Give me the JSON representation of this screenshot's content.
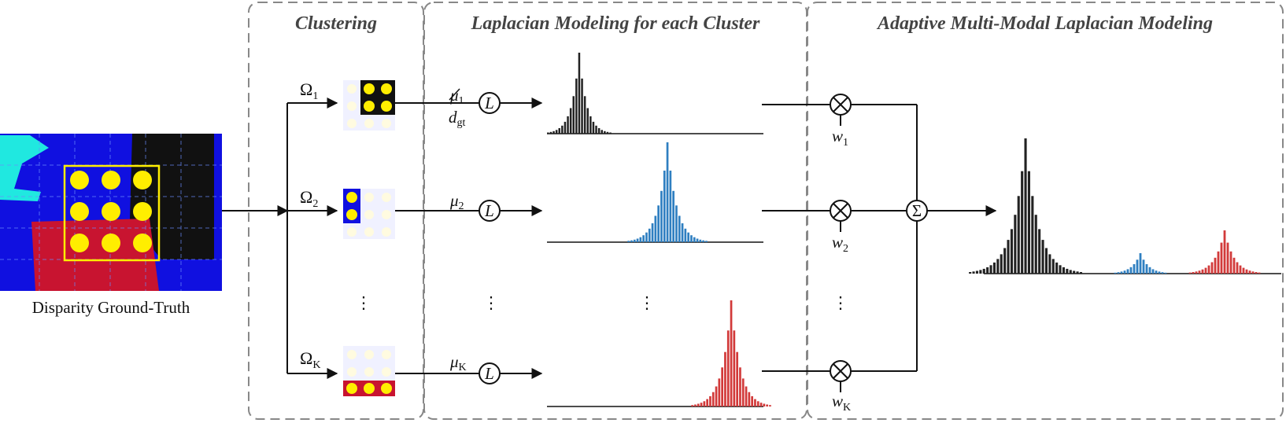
{
  "sections": {
    "clustering": "Clustering",
    "per_cluster": "Laplacian Modeling for each Cluster",
    "adaptive": "Adaptive Multi-Modal Laplacian Modeling"
  },
  "input": {
    "caption": "Disparity Ground-Truth"
  },
  "clusters": [
    {
      "omega": "Ω",
      "omega_sub": "1",
      "mu": "μ",
      "mu_sub": "1",
      "dgt": "d",
      "dgt_sub": "gt",
      "weight": "w",
      "weight_sub": "1",
      "color": "#222222"
    },
    {
      "omega": "Ω",
      "omega_sub": "2",
      "mu": "μ",
      "mu_sub": "2",
      "weight": "w",
      "weight_sub": "2",
      "color": "#2f7fc1"
    },
    {
      "omega": "Ω",
      "omega_sub": "K",
      "mu": "μ",
      "mu_sub": "K",
      "weight": "w",
      "weight_sub": "K",
      "color": "#d23a3a"
    }
  ],
  "symbols": {
    "laplacian": "L",
    "multiply": "×",
    "sum": "Σ",
    "ellipsis": "⋮"
  },
  "colors": {
    "dashed_border": "#888888",
    "yellow": "#ffee00",
    "blue": "#1010e0",
    "red": "#c81430",
    "cyan": "#20e8e0",
    "black": "#111111"
  }
}
